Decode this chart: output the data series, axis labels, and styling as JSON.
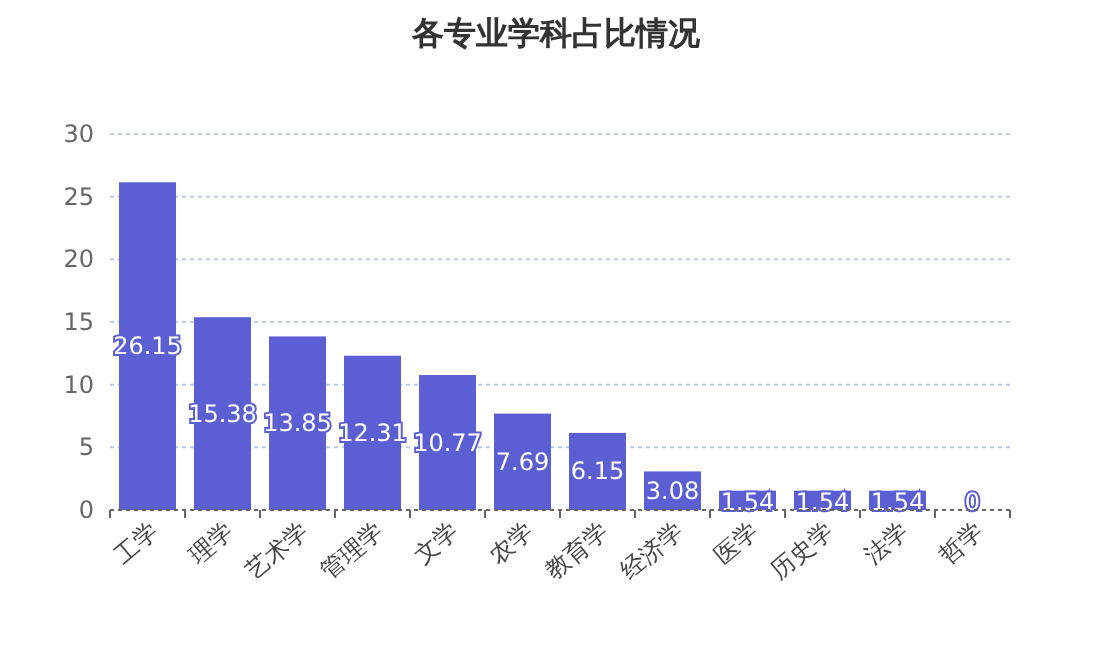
{
  "chart_data": {
    "type": "bar",
    "title": "各专业学科占比情况",
    "categories": [
      "工学",
      "理学",
      "艺术学",
      "管理学",
      "文学",
      "农学",
      "教育学",
      "经济学",
      "医学",
      "历史学",
      "法学",
      "哲学"
    ],
    "values": [
      26.15,
      15.38,
      13.85,
      12.31,
      10.77,
      7.69,
      6.15,
      3.08,
      1.54,
      1.54,
      1.54,
      0
    ],
    "color": "#5b5fd3",
    "ylim": [
      0,
      30
    ],
    "yticks": [
      0,
      5,
      10,
      15,
      20,
      25,
      30
    ],
    "grid": "y",
    "data_labels": true
  }
}
